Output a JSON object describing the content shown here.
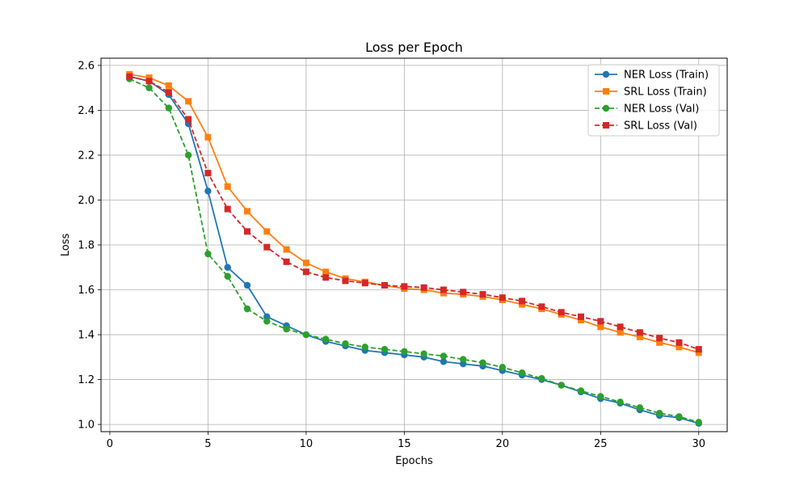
{
  "chart_data": {
    "type": "line",
    "title": "Loss per Epoch",
    "xlabel": "Epochs",
    "ylabel": "Loss",
    "xlim": [
      -0.45,
      31.45
    ],
    "ylim": [
      0.968,
      2.632
    ],
    "xticks": [
      0,
      5,
      10,
      15,
      20,
      25,
      30
    ],
    "yticks": [
      1.0,
      1.2,
      1.4,
      1.6,
      1.8,
      2.0,
      2.2,
      2.4,
      2.6
    ],
    "grid": true,
    "legend_position": "top-right",
    "x": [
      1,
      2,
      3,
      4,
      5,
      6,
      7,
      8,
      9,
      10,
      11,
      12,
      13,
      14,
      15,
      16,
      17,
      18,
      19,
      20,
      21,
      22,
      23,
      24,
      25,
      26,
      27,
      28,
      29,
      30
    ],
    "series": [
      {
        "name": "NER Loss (Train)",
        "color": "#1f77b4",
        "linestyle": "solid",
        "marker": "circle",
        "values": [
          2.55,
          2.53,
          2.47,
          2.34,
          2.04,
          1.7,
          1.62,
          1.48,
          1.44,
          1.4,
          1.37,
          1.35,
          1.33,
          1.32,
          1.31,
          1.3,
          1.28,
          1.27,
          1.26,
          1.24,
          1.22,
          1.2,
          1.175,
          1.145,
          1.115,
          1.095,
          1.065,
          1.04,
          1.03,
          1.005
        ]
      },
      {
        "name": "SRL Loss (Train)",
        "color": "#ff7f0e",
        "linestyle": "solid",
        "marker": "square",
        "values": [
          2.56,
          2.545,
          2.51,
          2.44,
          2.28,
          2.06,
          1.95,
          1.86,
          1.78,
          1.72,
          1.68,
          1.65,
          1.635,
          1.62,
          1.605,
          1.6,
          1.585,
          1.58,
          1.57,
          1.555,
          1.535,
          1.515,
          1.49,
          1.465,
          1.435,
          1.41,
          1.39,
          1.365,
          1.345,
          1.32
        ]
      },
      {
        "name": "NER Loss (Val)",
        "color": "#2ca02c",
        "linestyle": "dashed",
        "marker": "circle",
        "values": [
          2.54,
          2.5,
          2.41,
          2.2,
          1.76,
          1.66,
          1.515,
          1.46,
          1.425,
          1.4,
          1.38,
          1.36,
          1.345,
          1.335,
          1.325,
          1.315,
          1.305,
          1.29,
          1.275,
          1.255,
          1.23,
          1.205,
          1.175,
          1.15,
          1.125,
          1.1,
          1.075,
          1.05,
          1.035,
          1.01
        ]
      },
      {
        "name": "SRL Loss (Val)",
        "color": "#d62728",
        "linestyle": "dashed",
        "marker": "square",
        "values": [
          2.55,
          2.53,
          2.48,
          2.36,
          2.12,
          1.96,
          1.86,
          1.79,
          1.725,
          1.68,
          1.655,
          1.64,
          1.63,
          1.62,
          1.615,
          1.61,
          1.6,
          1.59,
          1.58,
          1.565,
          1.55,
          1.525,
          1.5,
          1.48,
          1.46,
          1.435,
          1.41,
          1.385,
          1.365,
          1.335
        ]
      }
    ]
  }
}
